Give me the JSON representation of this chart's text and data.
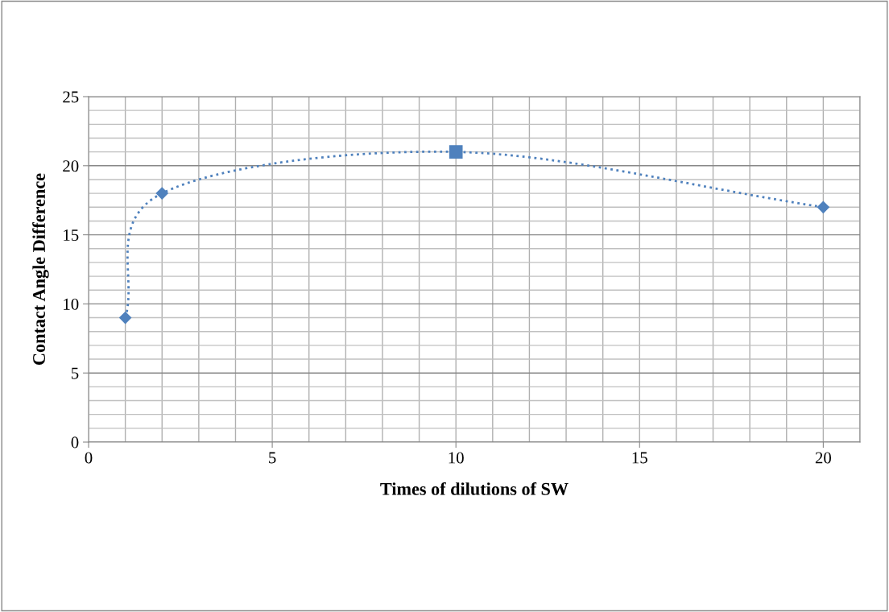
{
  "chart_data": {
    "type": "line",
    "xlabel": "Times of dilutions of SW",
    "ylabel": "Contact Angle Difference",
    "x": [
      1,
      2,
      10,
      20
    ],
    "series": [
      {
        "color": "#4f81bd",
        "values": [
          9,
          18,
          21,
          17
        ],
        "marker": "diamond",
        "line_style": "dotted"
      },
      {
        "type": "scatter",
        "x": [
          10
        ],
        "color": "#4f81bd",
        "values": [
          21
        ],
        "marker": "square"
      }
    ],
    "xlim": [
      0,
      21
    ],
    "xticks": [
      0,
      5,
      10,
      15,
      20
    ],
    "ylim": [
      0,
      25
    ],
    "yticks": [
      0,
      5,
      10,
      15,
      20,
      25
    ],
    "grid": true
  }
}
